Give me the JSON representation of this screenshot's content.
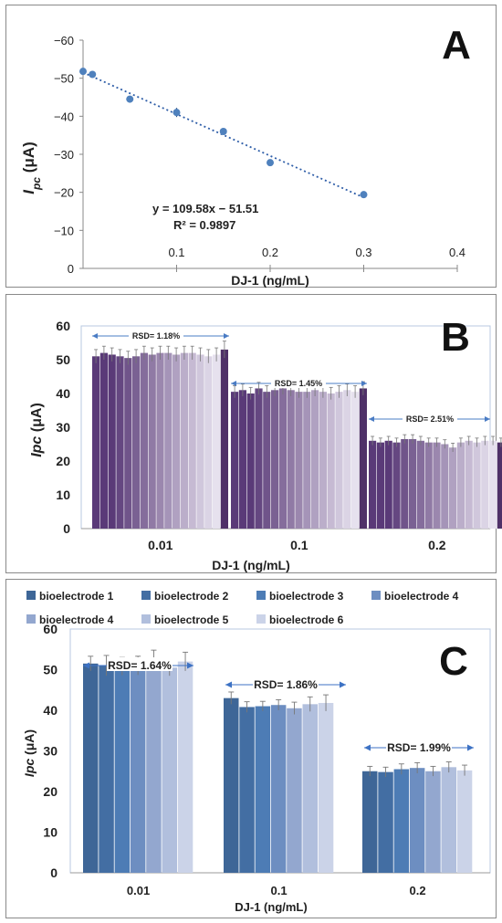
{
  "chart_data": [
    {
      "panel_letter": "A",
      "type": "scatter",
      "xlabel": "DJ-1 (ng/mL)",
      "ylabel_main": "I",
      "ylabel_sub": "pc",
      "ylabel_unit": " (μA)",
      "xlim": [
        0,
        0.4
      ],
      "ylim": [
        0,
        -60
      ],
      "xticks": [
        0.1,
        0.2,
        0.3,
        0.4
      ],
      "x_tick_labels": [
        "0.1",
        "0.2",
        "0.3",
        "0.4"
      ],
      "yticks": [
        0,
        -10,
        -20,
        -30,
        -40,
        -50,
        -60
      ],
      "y_tick_labels": [
        "0",
        "−10",
        "−20",
        "−30",
        "−40",
        "−50",
        "−60"
      ],
      "points": {
        "x": [
          0.0,
          0.01,
          0.05,
          0.1,
          0.15,
          0.2,
          0.3
        ],
        "y": [
          -51.8,
          -51.0,
          -44.5,
          -41.0,
          -36.0,
          -27.8,
          -19.4
        ],
        "err": [
          0.5,
          0.5,
          0.6,
          1.2,
          0.6,
          0.8,
          0.4
        ]
      },
      "trendline": {
        "slope": 109.58,
        "intercept": -51.51,
        "x_start": 0,
        "x_end": 0.3
      },
      "equation_text": "y = 109.58x − 51.51",
      "r2_text": "R² = 0.9897",
      "colors": {
        "marker": "#4f81bd",
        "trend": "#2f5ea8"
      }
    },
    {
      "panel_letter": "B",
      "type": "bar",
      "xlabel": "DJ-1 (ng/mL)",
      "ylabel_main": "Ipc",
      "ylabel_unit": " (μA)",
      "ylim": [
        0,
        60
      ],
      "yticks": [
        0,
        10,
        20,
        30,
        40,
        50,
        60
      ],
      "categories": [
        "0.01",
        "0.1",
        "0.2"
      ],
      "groups": [
        {
          "values": [
            51,
            52,
            51.5,
            51,
            50.5,
            51,
            52,
            51.5,
            52,
            52,
            51.5,
            52,
            52,
            51.5,
            51,
            51.5,
            53
          ],
          "err": [
            2,
            2,
            2,
            2,
            2,
            2,
            2,
            2,
            2,
            2,
            2,
            2,
            2,
            2,
            2,
            2,
            2.5
          ]
        },
        {
          "values": [
            40.5,
            41,
            40,
            41.5,
            40.5,
            41,
            41.5,
            41,
            40.5,
            40.5,
            41,
            40.5,
            40,
            40.5,
            41,
            40.5,
            41.5
          ],
          "err": [
            1.8,
            1.8,
            1.8,
            1.8,
            1.8,
            1.8,
            1.8,
            1.8,
            1.8,
            1.8,
            1.8,
            1.8,
            1.8,
            1.8,
            1.8,
            1.8,
            2
          ]
        },
        {
          "values": [
            26,
            25.5,
            26,
            25.5,
            26.5,
            26.5,
            26,
            25.5,
            25.5,
            25,
            24,
            25.5,
            26,
            25.5,
            26,
            26,
            25.5
          ],
          "err": [
            1.3,
            1.3,
            1.3,
            1.3,
            1.3,
            1.3,
            1.3,
            1.3,
            1.3,
            1.3,
            1.3,
            1.3,
            1.3,
            1.3,
            1.3,
            1.3,
            1.3
          ]
        }
      ],
      "annotations": [
        "RSD= 1.18%",
        "RSD= 1.45%",
        "RSD= 2.51%"
      ],
      "colors": {
        "dark": "#5a3a78",
        "light": "#e6e1ee",
        "accent": "#4f3168"
      }
    },
    {
      "panel_letter": "C",
      "type": "bar",
      "xlabel": "DJ-1 (ng/mL)",
      "ylabel_main": "Ipc",
      "ylabel_unit": " (μA)",
      "ylim": [
        0,
        60
      ],
      "yticks": [
        0,
        10,
        20,
        30,
        40,
        50,
        60
      ],
      "categories": [
        "0.01",
        "0.1",
        "0.2"
      ],
      "legend": [
        "bioelectrode 1",
        "bioelectrode 2",
        "bioelectrode 3",
        "bioelectrode 4",
        "bioelectrode 4",
        "bioelectrode 5",
        "bioelectrode 6"
      ],
      "series_values": [
        [
          51.5,
          43.0,
          25.0
        ],
        [
          51.0,
          40.8,
          24.8
        ],
        [
          50.8,
          41.0,
          25.5
        ],
        [
          51.0,
          41.3,
          25.8
        ],
        [
          53.0,
          40.5,
          25.0
        ],
        [
          50.5,
          41.5,
          26.0
        ],
        [
          52.0,
          41.8,
          25.2
        ]
      ],
      "series_err": [
        [
          1.8,
          1.5,
          1.2
        ],
        [
          2.5,
          1.3,
          1.2
        ],
        [
          2.2,
          1.2,
          1.3
        ],
        [
          2.3,
          1.3,
          1.3
        ],
        [
          1.8,
          1.5,
          1.2
        ],
        [
          2.0,
          1.8,
          1.3
        ],
        [
          2.3,
          2.0,
          1.3
        ]
      ],
      "annotations": [
        "RSD= 1.64%",
        "RSD= 1.86%",
        "RSD= 1.99%"
      ],
      "colors": [
        "#3e6697",
        "#436ea3",
        "#4d7cb5",
        "#6d8ec1",
        "#93a7cf",
        "#b1bfdd",
        "#cbd3e8"
      ],
      "arrow_color": "#3d72c4"
    }
  ]
}
